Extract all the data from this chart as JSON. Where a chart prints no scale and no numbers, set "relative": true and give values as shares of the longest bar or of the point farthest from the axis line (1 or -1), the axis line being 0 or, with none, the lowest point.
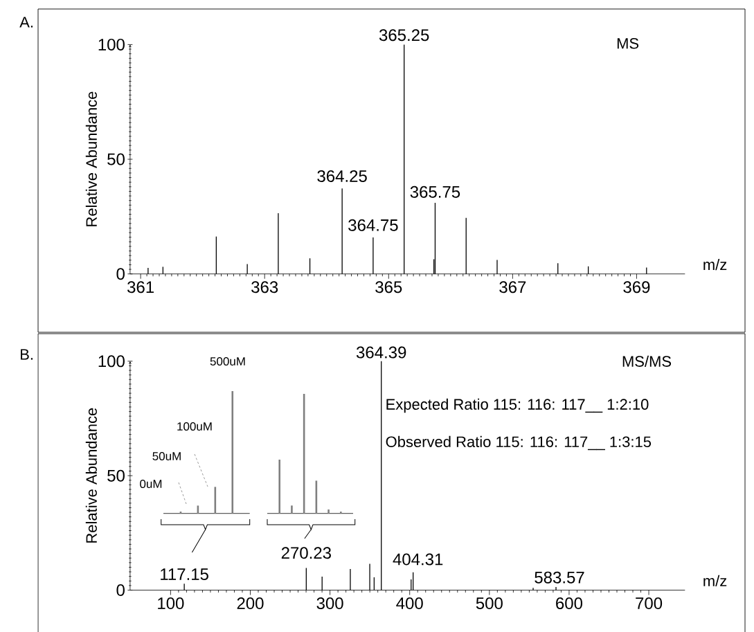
{
  "chart_data": [
    {
      "type": "bar",
      "title": "A.",
      "xlabel": "m/z",
      "ylabel": "Relative Abundance",
      "color": "#000000",
      "x": [
        361.12,
        361.36,
        362.22,
        362.72,
        363.22,
        363.73,
        364.25,
        364.75,
        365.25,
        365.73,
        365.75,
        366.25,
        366.75,
        367.73,
        368.22,
        369.16
      ],
      "values": [
        2.6,
        3.1,
        16.3,
        4.3,
        26.5,
        6.8,
        37.3,
        15.9,
        100,
        6.4,
        31.0,
        24.4,
        6.1,
        4.7,
        3.3,
        2.8
      ],
      "xlim": [
        360.83,
        369.78
      ],
      "ylim": [
        0,
        100
      ],
      "xticks": [
        361,
        363,
        365,
        367,
        369
      ],
      "yticks": [
        0,
        50,
        100
      ],
      "annotations": [
        "MS",
        {
          "text": "364.25",
          "x": 364.25,
          "y": 37.3
        },
        {
          "text": "364.75",
          "x": 364.75,
          "y": 15.9
        },
        {
          "text": "365.25",
          "x": 365.25,
          "y": 100
        },
        {
          "text": "365.75",
          "x": 365.75,
          "y": 31.0
        }
      ]
    },
    {
      "type": "bar",
      "title": "B.",
      "xlabel": "m/z",
      "ylabel": "Relative Abundance",
      "color": "#000000",
      "x": [
        117.15,
        270.23,
        290.1,
        325.5,
        349.9,
        355.4,
        364.39,
        401.8,
        404.31,
        554.9,
        583.57
      ],
      "values": [
        2.8,
        9.7,
        5.9,
        9.2,
        11.5,
        5.6,
        100,
        4.7,
        7.8,
        1.0,
        1.4
      ],
      "xlim": [
        49.2,
        745.4
      ],
      "ylim": [
        0,
        100
      ],
      "xticks": [
        100,
        200,
        300,
        400,
        500,
        600,
        700
      ],
      "yticks": [
        0,
        50,
        100
      ],
      "annotations": [
        "MS/MS",
        "Expected Ratio 115: 116: 117__ 1:2:10",
        "Observed Ratio 115: 116: 117__ 1:3:15",
        {
          "text": "117.15",
          "x": 117.15,
          "y": 2.8
        },
        {
          "text": "270.23",
          "x": 270.23,
          "y": 9.7
        },
        {
          "text": "364.39",
          "x": 364.39,
          "y": 100
        },
        {
          "text": "404.31",
          "x": 404.31,
          "y": 7.8
        },
        {
          "text": "583.57",
          "x": 583.57,
          "y": 1.4
        }
      ]
    },
    {
      "type": "bar",
      "relative": true,
      "color": "#7f7f7f",
      "categories": [
        null,
        null,
        null,
        null
      ],
      "values": [
        0.015,
        0.064,
        0.217,
        1
      ],
      "annotations": [
        "500uM",
        "100uM",
        "50uM",
        "0uM"
      ]
    },
    {
      "type": "bar",
      "relative": true,
      "color": "#7f7f7f",
      "categories": [
        null,
        null,
        null,
        null,
        null,
        null
      ],
      "values": [
        0.45,
        0.066,
        1,
        0.274,
        0.033,
        0.015
      ]
    }
  ]
}
